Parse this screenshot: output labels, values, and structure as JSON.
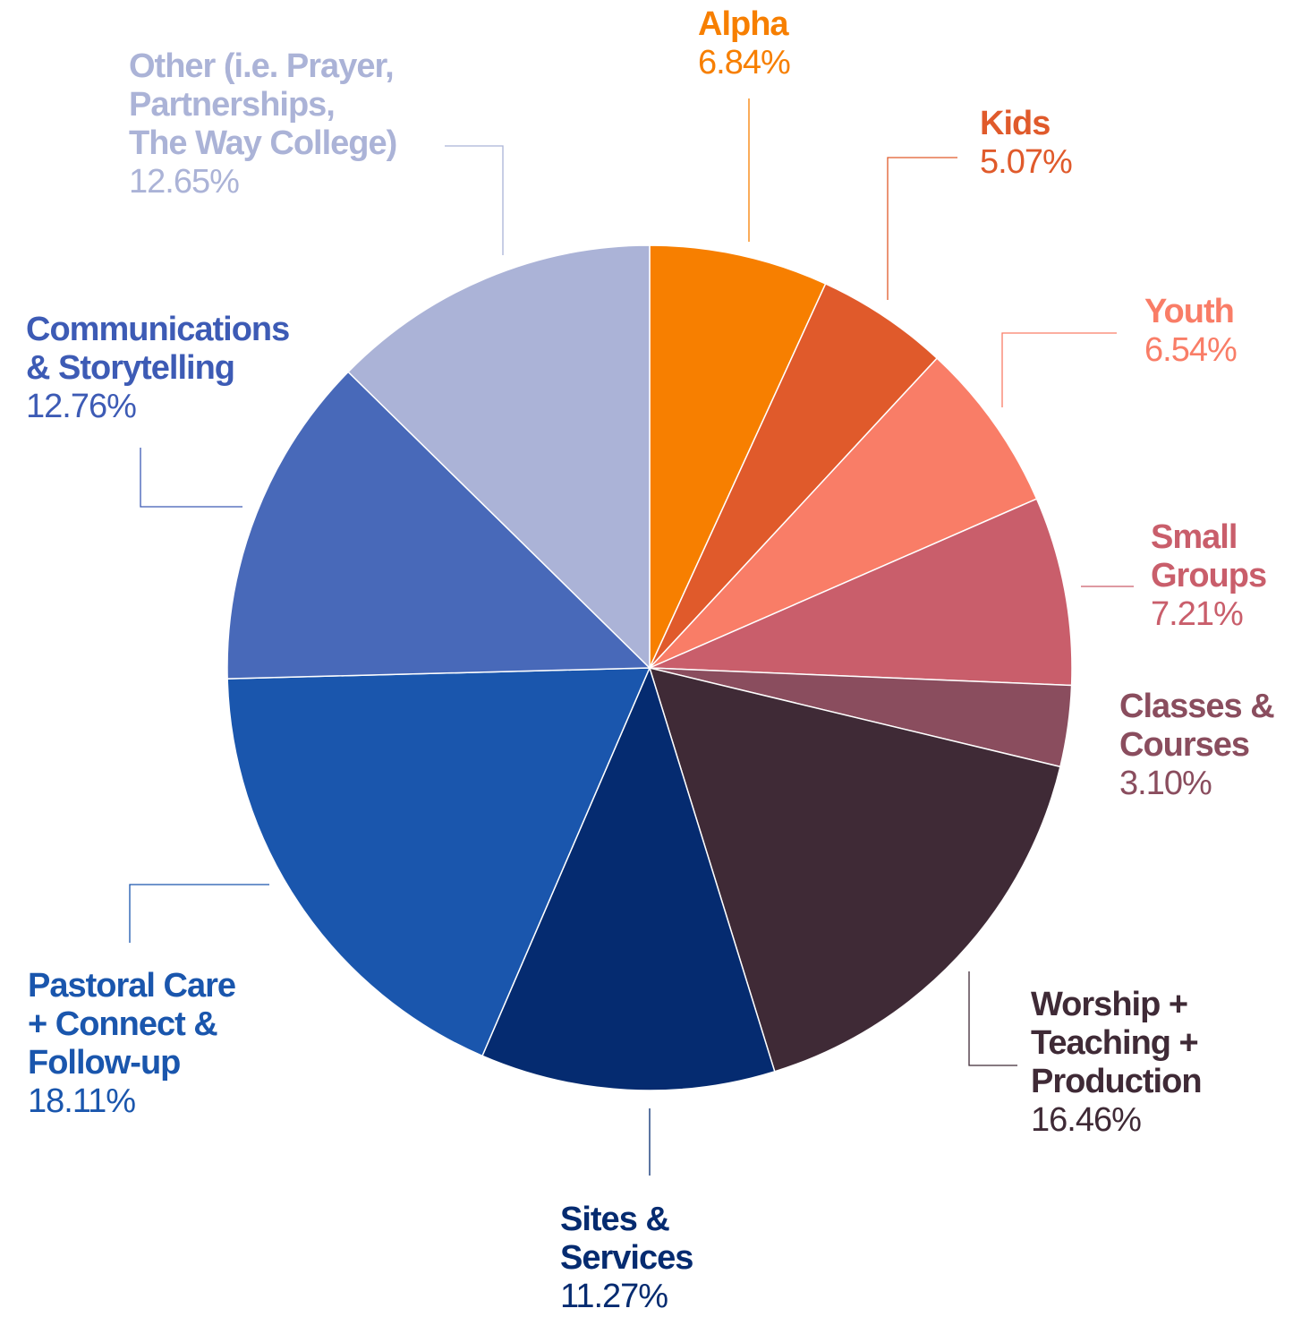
{
  "chart_data": {
    "type": "pie",
    "start_angle_deg": 0,
    "direction": "clockwise",
    "slices": [
      {
        "label": "Alpha",
        "value": 6.84,
        "value_label": "6.84%",
        "color": "#F77F00"
      },
      {
        "label": "Kids",
        "value": 5.07,
        "value_label": "5.07%",
        "color": "#E05A2B"
      },
      {
        "label": "Youth",
        "value": 6.54,
        "value_label": "6.54%",
        "color": "#F97D67"
      },
      {
        "label": "Small\nGroups",
        "value": 7.21,
        "value_label": "7.21%",
        "color": "#C95E6B"
      },
      {
        "label": "Classes &\nCourses",
        "value": 3.1,
        "value_label": "3.10%",
        "color": "#8A4D5E"
      },
      {
        "label": "Worship +\nTeaching +\nProduction",
        "value": 16.46,
        "value_label": "16.46%",
        "color": "#3F2A36"
      },
      {
        "label": "Sites &\nServices",
        "value": 11.27,
        "value_label": "11.27%",
        "color": "#052B70"
      },
      {
        "label": "Pastoral Care\n+ Connect &\nFollow-up",
        "value": 18.11,
        "value_label": "18.11%",
        "color": "#1A56AD"
      },
      {
        "label": "Communications\n& Storytelling",
        "value": 12.76,
        "value_label": "12.76%",
        "color": "#4869B9"
      },
      {
        "label": "Other (i.e. Prayer,\nPartnerships,\nThe Way College)",
        "value": 12.65,
        "value_label": "12.65%",
        "color": "#ABB3D7"
      }
    ],
    "label_colors": [
      "#F77F00",
      "#E05A2B",
      "#F97D67",
      "#C95E6B",
      "#8A4D5E",
      "#3F2A36",
      "#052B70",
      "#1A56AD",
      "#3D5BB5",
      "#ABB3D7"
    ]
  }
}
